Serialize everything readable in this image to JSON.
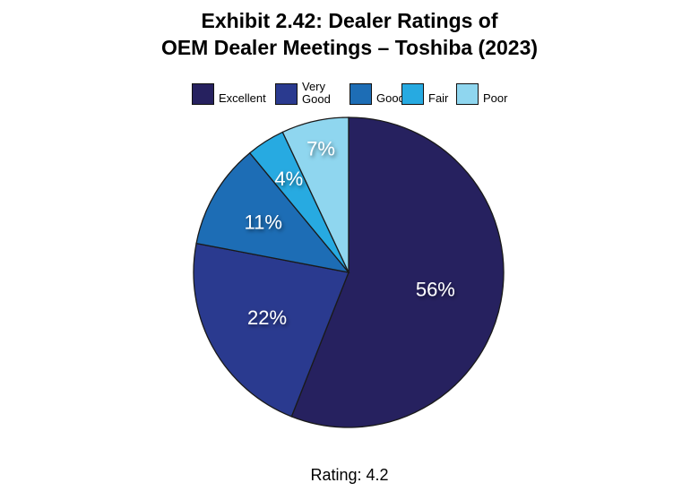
{
  "title": {
    "line1": "Exhibit 2.42: Dealer Ratings of",
    "line2": "OEM Dealer Meetings – Toshiba (2023)"
  },
  "chart_data": {
    "type": "pie",
    "title": "Exhibit 2.42: Dealer Ratings of OEM Dealer Meetings – Toshiba (2023)",
    "categories": [
      "Excellent",
      "Very Good",
      "Good",
      "Fair",
      "Poor"
    ],
    "values": [
      56,
      22,
      11,
      4,
      7
    ],
    "value_labels": [
      "56%",
      "22%",
      "11%",
      "4%",
      "7%"
    ],
    "colors": [
      "#26215f",
      "#2a3a8f",
      "#1d6db5",
      "#27aae1",
      "#8fd6ef"
    ],
    "legend_position": "top",
    "start": "12 o'clock",
    "direction": "clockwise"
  },
  "legend": [
    {
      "lines": [
        "Excellent"
      ]
    },
    {
      "lines": [
        "Very",
        "Good"
      ]
    },
    {
      "lines": [
        "Good"
      ]
    },
    {
      "lines": [
        "Fair"
      ]
    },
    {
      "lines": [
        "Poor"
      ]
    }
  ],
  "footer": {
    "rating": "Rating: 4.2"
  }
}
